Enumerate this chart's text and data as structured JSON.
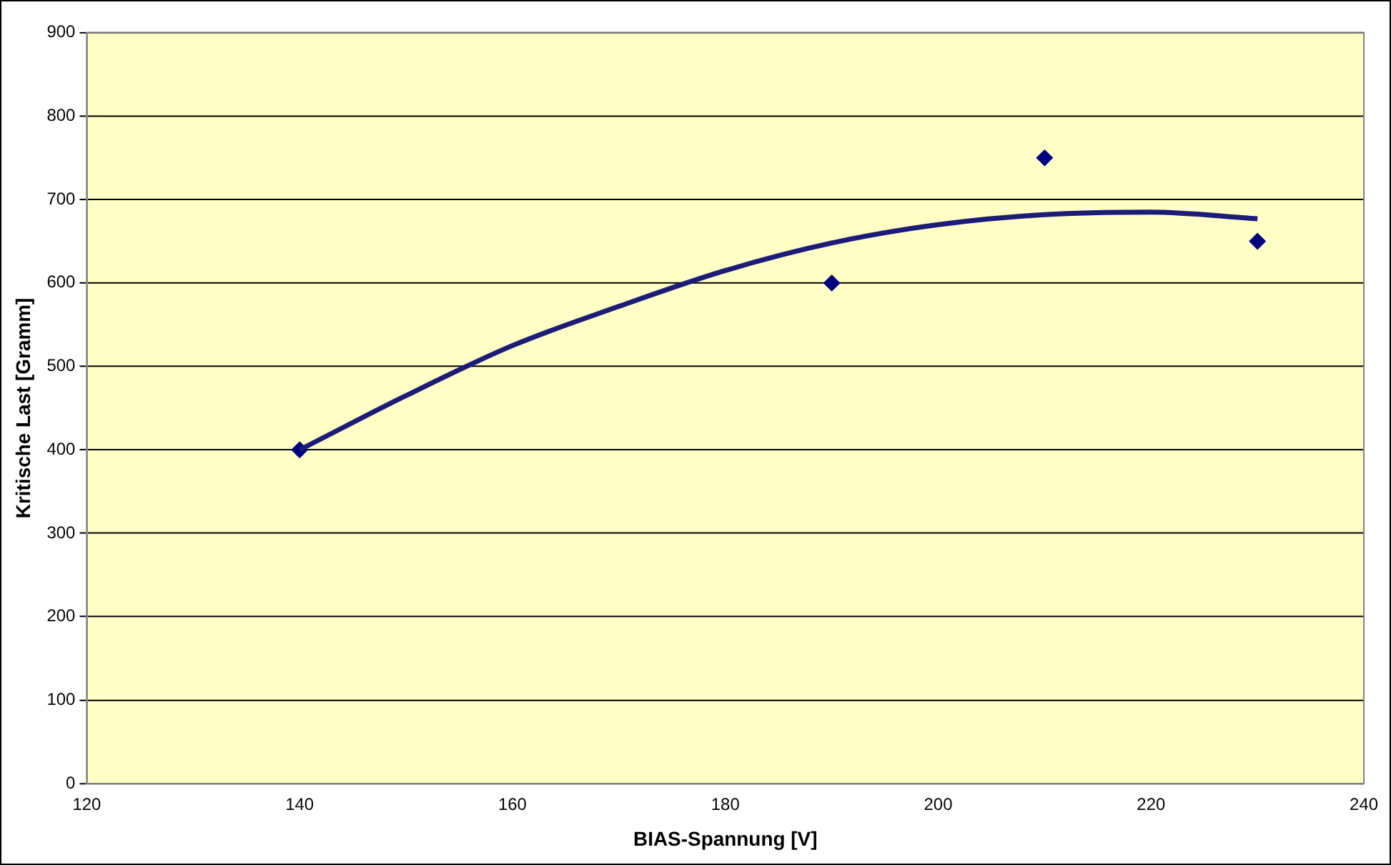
{
  "chart_data": {
    "type": "scatter",
    "xlabel": "BIAS-Spannung [V]",
    "ylabel": "Kritische Last [Gramm]",
    "xlim": [
      120,
      240
    ],
    "xticks": [
      120,
      140,
      160,
      180,
      200,
      220,
      240
    ],
    "ylim": [
      0,
      900
    ],
    "yticks": [
      0,
      100,
      200,
      300,
      400,
      500,
      600,
      700,
      800,
      900
    ],
    "grid": "y",
    "legend": false,
    "marker": "diamond",
    "series": [
      {
        "color": "#000080",
        "x": [
          140,
          190,
          210,
          230
        ],
        "values": [
          400,
          600,
          750,
          650
        ]
      },
      {
        "type": "line",
        "color": "#1c1c78",
        "marker": "none",
        "line_style": "solid",
        "x": [
          140,
          150,
          160,
          170,
          180,
          190,
          200,
          210,
          220,
          230
        ],
        "values": [
          400,
          465,
          525,
          572,
          615,
          648,
          670,
          682,
          685,
          677
        ]
      }
    ]
  }
}
